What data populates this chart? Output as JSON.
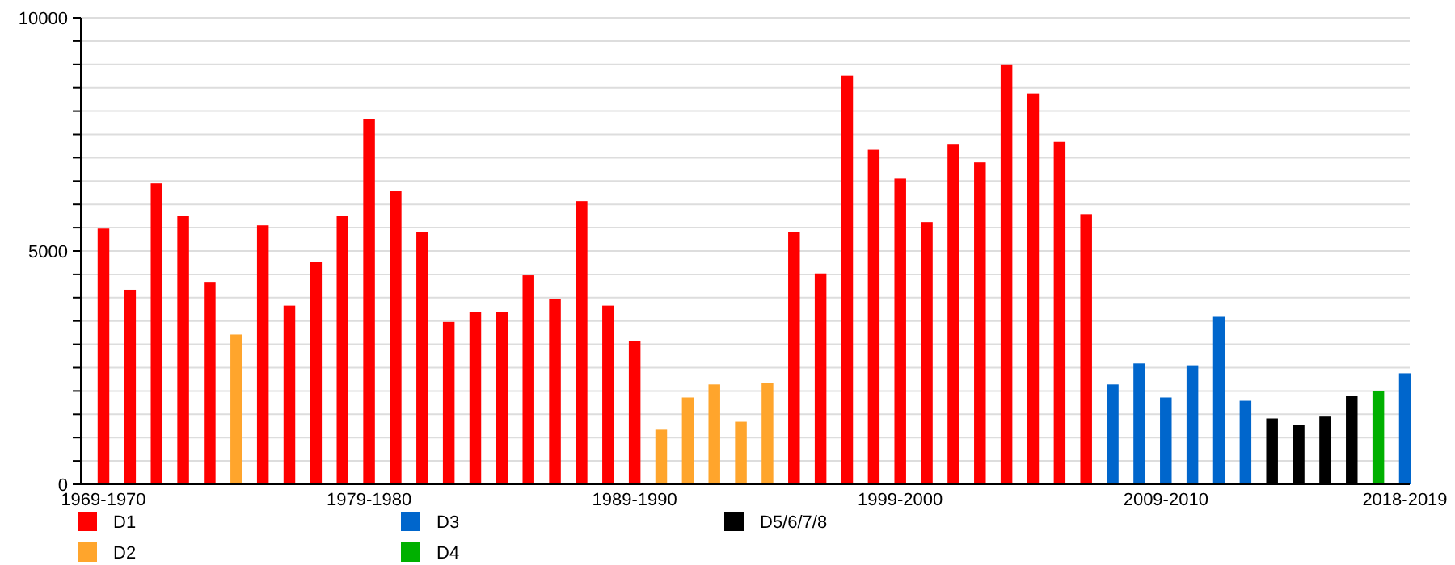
{
  "chart_data": {
    "type": "bar",
    "categories": [
      "1969-1970",
      null,
      null,
      null,
      null,
      null,
      null,
      null,
      null,
      null,
      "1979-1980",
      null,
      null,
      null,
      null,
      null,
      null,
      null,
      null,
      null,
      "1989-1990",
      null,
      null,
      null,
      null,
      null,
      null,
      null,
      null,
      null,
      "1999-2000",
      null,
      null,
      null,
      null,
      null,
      null,
      null,
      null,
      null,
      "2009-2010",
      null,
      null,
      null,
      null,
      null,
      null,
      null,
      null,
      "2018-2019"
    ],
    "series": [
      {
        "name": "D1",
        "color": "#ff0000",
        "values": [
          5480,
          4170,
          6450,
          5760,
          4340,
          null,
          5550,
          3830,
          4760,
          5760,
          7830,
          6280,
          5410,
          3480,
          3690,
          3690,
          4480,
          3970,
          6070,
          3830,
          3070,
          null,
          null,
          null,
          null,
          null,
          5410,
          4520,
          8760,
          7170,
          6550,
          5620,
          7280,
          6900,
          9000,
          8380,
          7340,
          5790,
          null,
          null,
          null,
          null,
          null,
          null,
          null,
          null,
          null,
          null,
          null,
          null
        ]
      },
      {
        "name": "D2",
        "color": "#ffa52c",
        "values": [
          null,
          null,
          null,
          null,
          null,
          3210,
          null,
          null,
          null,
          null,
          null,
          null,
          null,
          null,
          null,
          null,
          null,
          null,
          null,
          null,
          null,
          1170,
          1860,
          2140,
          1340,
          2170,
          null,
          null,
          null,
          null,
          null,
          null,
          null,
          null,
          null,
          null,
          null,
          null,
          null,
          null,
          null,
          null,
          null,
          null,
          null,
          null,
          null,
          null,
          null,
          null
        ]
      },
      {
        "name": "D3",
        "color": "#0066cc",
        "values": [
          null,
          null,
          null,
          null,
          null,
          null,
          null,
          null,
          null,
          null,
          null,
          null,
          null,
          null,
          null,
          null,
          null,
          null,
          null,
          null,
          null,
          null,
          null,
          null,
          null,
          null,
          null,
          null,
          null,
          null,
          null,
          null,
          null,
          null,
          null,
          null,
          null,
          null,
          2140,
          2590,
          1860,
          2550,
          3590,
          1790,
          null,
          null,
          null,
          null,
          null,
          2380
        ]
      },
      {
        "name": "D4",
        "color": "#00b000",
        "values": [
          null,
          null,
          null,
          null,
          null,
          null,
          null,
          null,
          null,
          null,
          null,
          null,
          null,
          null,
          null,
          null,
          null,
          null,
          null,
          null,
          null,
          null,
          null,
          null,
          null,
          null,
          null,
          null,
          null,
          null,
          null,
          null,
          null,
          null,
          null,
          null,
          null,
          null,
          null,
          null,
          null,
          null,
          null,
          null,
          null,
          null,
          null,
          null,
          2000,
          null
        ]
      },
      {
        "name": "D5/6/7/8",
        "color": "#000000",
        "values": [
          null,
          null,
          null,
          null,
          null,
          null,
          null,
          null,
          null,
          null,
          null,
          null,
          null,
          null,
          null,
          null,
          null,
          null,
          null,
          null,
          null,
          null,
          null,
          null,
          null,
          null,
          null,
          null,
          null,
          null,
          null,
          null,
          null,
          null,
          null,
          null,
          null,
          null,
          null,
          null,
          null,
          null,
          null,
          null,
          1410,
          1280,
          1450,
          1900,
          null,
          null
        ]
      }
    ],
    "ylim": [
      0,
      10000
    ],
    "yticks": [
      0,
      {
        "value": 500,
        "label": null
      },
      {
        "value": 1000,
        "label": null
      },
      {
        "value": 1500,
        "label": null
      },
      {
        "value": 2000,
        "label": null
      },
      {
        "value": 2500,
        "label": null
      },
      {
        "value": 3000,
        "label": null
      },
      {
        "value": 3500,
        "label": null
      },
      {
        "value": 4000,
        "label": null
      },
      {
        "value": 4500,
        "label": null
      },
      5000,
      {
        "value": 5500,
        "label": null
      },
      {
        "value": 6000,
        "label": null
      },
      {
        "value": 6500,
        "label": null
      },
      {
        "value": 7000,
        "label": null
      },
      {
        "value": 7500,
        "label": null
      },
      {
        "value": 8000,
        "label": null
      },
      {
        "value": 8500,
        "label": null
      },
      {
        "value": 9000,
        "label": null
      },
      {
        "value": 9500,
        "label": null
      },
      10000
    ],
    "grid": true,
    "legend": "bottom"
  }
}
